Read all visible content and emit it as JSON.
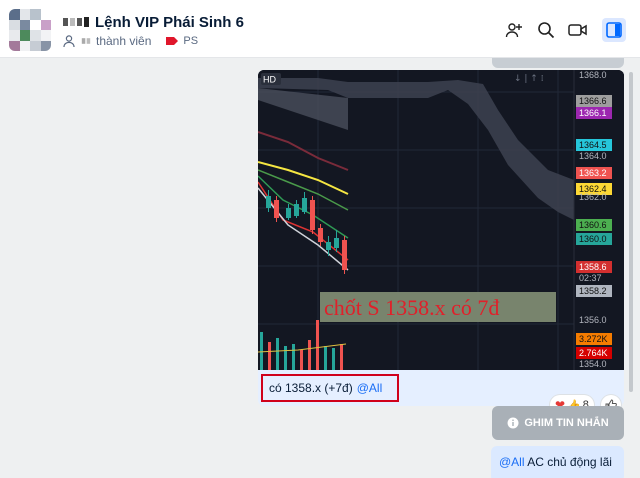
{
  "header": {
    "title": "Lệnh VIP Phái Sinh 6",
    "members_label": "thành viên",
    "tag_label": "PS",
    "icons": [
      "add-member-icon",
      "search-icon",
      "video-call-icon",
      "sidebar-toggle-icon"
    ]
  },
  "message": {
    "image_badge": "HD",
    "chart_overlay_text": "chốt S 1358.x có 7đ",
    "caption_text": "có 1358.x (+7đ)",
    "caption_mention": "@All",
    "reaction_count": "8"
  },
  "pin_button": {
    "label": "GHIM TIN NHẮN"
  },
  "message2": {
    "mention": "@All",
    "text": "AC chủ động lãi"
  },
  "chart_data": {
    "type": "candlestick",
    "price_axis_labels": [
      "1368.0",
      "1366.6",
      "1366.1",
      "1364.5",
      "1364.0",
      "1363.2",
      "1362.4",
      "1362.0",
      "1360.6",
      "1360.0",
      "1358.6",
      "02:37",
      "1358.2",
      "1356.0",
      "3.272K",
      "2.764K",
      "1354.0"
    ],
    "price_axis_label_colors": {
      "1366.6": "#9e9e9e",
      "1366.1": "#9c27b0",
      "1364.5": "#26c6da",
      "1363.2": "#ef5350",
      "1362.4": "#fdd835",
      "1360.6": "#4caf50",
      "1360.0": "#26a69a",
      "1358.6": "#d32f2f",
      "1358.2": "#b0b6c0",
      "3.272K": "#f57c00",
      "2.764K": "#d50000"
    }
  }
}
